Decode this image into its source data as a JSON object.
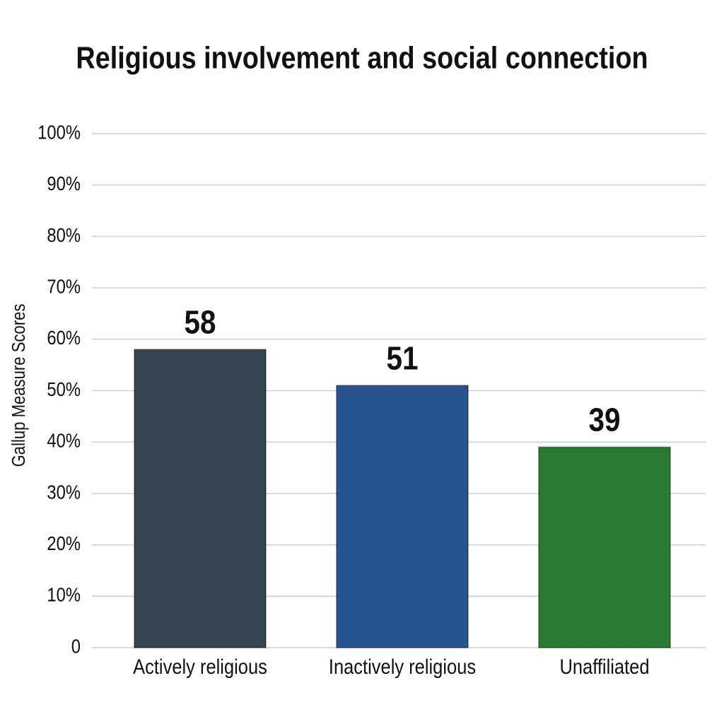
{
  "chart_data": {
    "type": "bar",
    "title": "Religious involvement and social connection",
    "y_label": "Gallup Measure Scores",
    "categories": [
      "Actively religious",
      "Inactively religious",
      "Unaffiliated"
    ],
    "values": [
      58,
      51,
      39
    ],
    "colors": [
      "#37454f",
      "#27538f",
      "#2b7a34"
    ],
    "ylim": [
      0,
      100
    ],
    "yticks": [
      0,
      {
        "value": 10,
        "label": "10%"
      },
      {
        "value": 20,
        "label": "20%"
      },
      {
        "value": 30,
        "label": "30%"
      },
      {
        "value": 40,
        "label": "40%"
      },
      {
        "value": 50,
        "label": "50%"
      },
      {
        "value": 60,
        "label": "60%"
      },
      {
        "value": 70,
        "label": "70%"
      },
      {
        "value": 80,
        "label": "80%"
      },
      {
        "value": 90,
        "label": "90%"
      },
      {
        "value": 100,
        "label": "100%"
      }
    ],
    "grid": true
  }
}
